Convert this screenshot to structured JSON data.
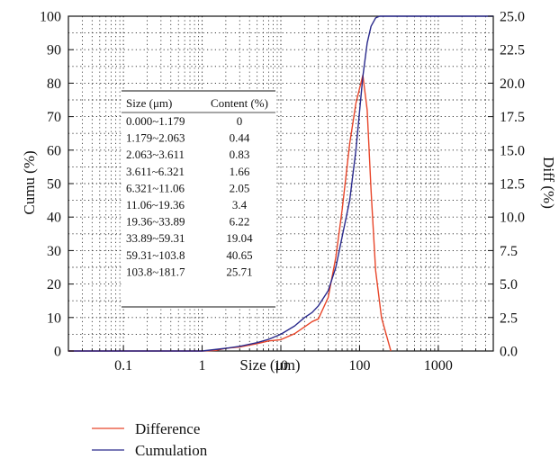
{
  "chart_data": {
    "type": "line",
    "xlabel": "Size (μm)",
    "ylabel_left": "Cumu (%)",
    "ylabel_right": "Diff (%)",
    "x_scale": "log",
    "xlim": [
      0.02,
      5000
    ],
    "ylim_left": [
      0,
      100
    ],
    "ylim_right": [
      0,
      25
    ],
    "grid": "dotted",
    "legend_placement": "bottom-left",
    "x_ticks": [
      {
        "v": 0.1,
        "label": "0.1"
      },
      {
        "v": 1,
        "label": "1"
      },
      {
        "v": 10,
        "label": "10"
      },
      {
        "v": 100,
        "label": "100"
      },
      {
        "v": 1000,
        "label": "1000"
      }
    ],
    "y_left_ticks": [
      {
        "v": 0,
        "label": "0"
      },
      {
        "v": 10,
        "label": "10"
      },
      {
        "v": 20,
        "label": "20"
      },
      {
        "v": 30,
        "label": "30"
      },
      {
        "v": 40,
        "label": "40"
      },
      {
        "v": 50,
        "label": "50"
      },
      {
        "v": 60,
        "label": "60"
      },
      {
        "v": 70,
        "label": "70"
      },
      {
        "v": 80,
        "label": "80"
      },
      {
        "v": 90,
        "label": "90"
      },
      {
        "v": 100,
        "label": "100"
      }
    ],
    "y_right_ticks": [
      {
        "v": 0,
        "label": "0.0"
      },
      {
        "v": 2.5,
        "label": "2.5"
      },
      {
        "v": 5,
        "label": "5.0"
      },
      {
        "v": 7.5,
        "label": "7.5"
      },
      {
        "v": 10,
        "label": "10.0"
      },
      {
        "v": 12.5,
        "label": "12.5"
      },
      {
        "v": 15,
        "label": "15.0"
      },
      {
        "v": 17.5,
        "label": "17.5"
      },
      {
        "v": 20,
        "label": "20.0"
      },
      {
        "v": 22.5,
        "label": "22.5"
      },
      {
        "v": 25,
        "label": "25.0"
      }
    ],
    "series": [
      {
        "name": "Difference",
        "color": "#e8462a",
        "axis": "right",
        "x": [
          0.02,
          1.0,
          1.5,
          2.0,
          3.0,
          5.0,
          7.0,
          10.0,
          15.0,
          20.0,
          25.0,
          30.0,
          40.0,
          50.0,
          60.0,
          75.0,
          90.0,
          110.0,
          125.0,
          140.0,
          160.0,
          190.0,
          250.0
        ],
        "y": [
          0.0,
          0.0,
          0.05,
          0.2,
          0.3,
          0.55,
          0.75,
          0.85,
          1.3,
          1.8,
          2.2,
          2.4,
          4.0,
          7.0,
          10.5,
          15.5,
          18.5,
          20.6,
          18.0,
          12.0,
          6.0,
          2.5,
          0.0
        ]
      },
      {
        "name": "Cumulation",
        "color": "#2a2a8c",
        "axis": "left",
        "x": [
          0.02,
          1.0,
          2.0,
          3.0,
          5.0,
          7.0,
          10.0,
          15.0,
          20.0,
          25.0,
          30.0,
          40.0,
          50.0,
          60.0,
          75.0,
          90.0,
          110.0,
          125.0,
          140.0,
          160.0,
          180.0,
          5000.0
        ],
        "y": [
          0.0,
          0.0,
          0.8,
          1.4,
          2.5,
          3.5,
          5.0,
          7.5,
          10.0,
          11.5,
          13.5,
          18.0,
          25.0,
          34.0,
          45.0,
          60.0,
          82.0,
          92.0,
          97.0,
          99.5,
          100.0,
          100.0
        ]
      }
    ]
  },
  "table": {
    "headers": [
      "Size (μm)",
      "Content (%)"
    ],
    "rows": [
      [
        "0.000~1.179",
        "0"
      ],
      [
        "1.179~2.063",
        "0.44"
      ],
      [
        "2.063~3.611",
        "0.83"
      ],
      [
        "3.611~6.321",
        "1.66"
      ],
      [
        "6.321~11.06",
        "2.05"
      ],
      [
        "11.06~19.36",
        "3.4"
      ],
      [
        "19.36~33.89",
        "6.22"
      ],
      [
        "33.89~59.31",
        "19.04"
      ],
      [
        "59.31~103.8",
        "40.65"
      ],
      [
        "103.8~181.7",
        "25.71"
      ]
    ]
  },
  "legend": [
    {
      "label": "Difference",
      "color": "#e8462a"
    },
    {
      "label": "Cumulation",
      "color": "#2a2a8c"
    }
  ]
}
